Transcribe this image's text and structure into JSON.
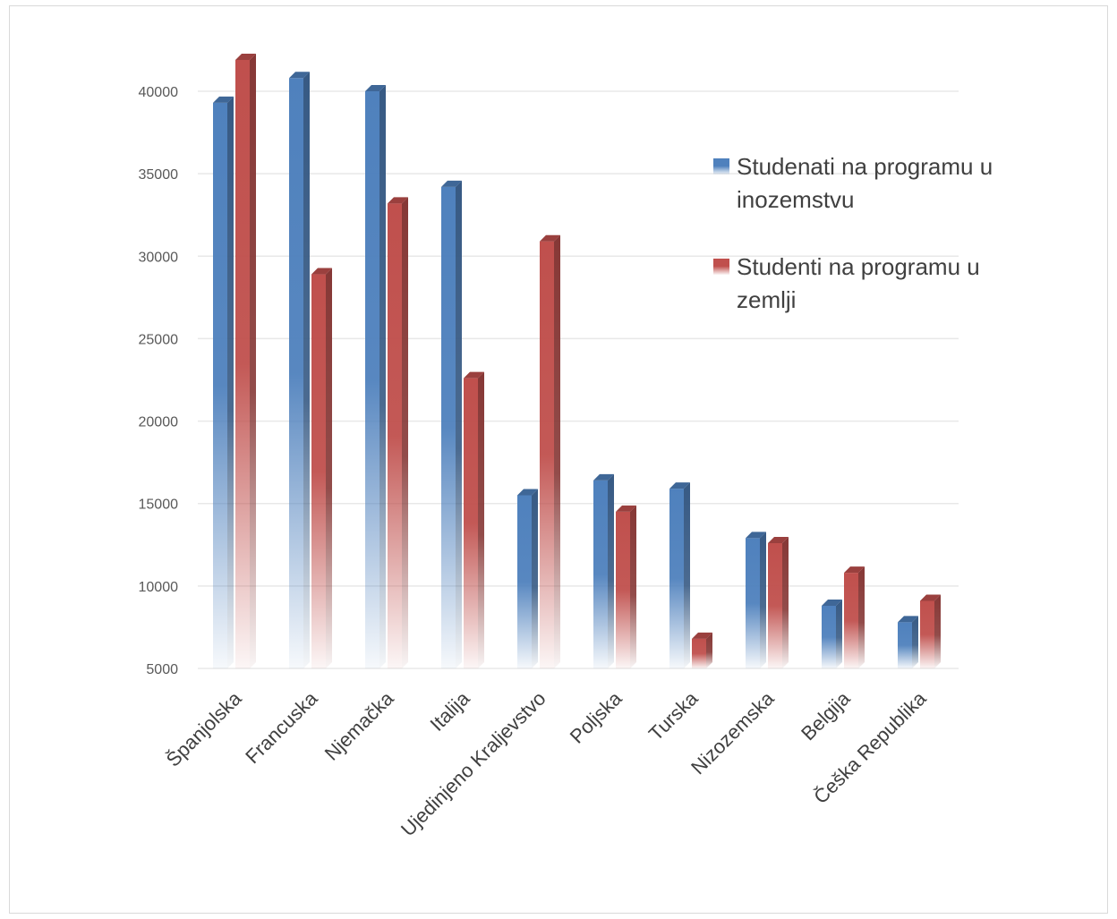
{
  "chart_data": {
    "type": "bar",
    "three_d": true,
    "categories": [
      "Španjolska",
      "Francuska",
      "Njemačka",
      "Italija",
      "Ujedinjeno Kraljevstvo",
      "Poljska",
      "Turska",
      "Nizozemska",
      "Belgija",
      "Češka Republika"
    ],
    "series": [
      {
        "name": "Studenati na programu u inozemstvu",
        "name_lines": [
          "Studenati na programu u",
          "inozemstvu"
        ],
        "color": "#4f81bd",
        "values": [
          39300,
          40800,
          40000,
          34200,
          15500,
          16400,
          15900,
          12900,
          8800,
          7800
        ]
      },
      {
        "name": "Studenti na programu u zemlji",
        "name_lines": [
          "Studenti na programu u",
          "zemlji"
        ],
        "color": "#c0504d",
        "values": [
          41900,
          28900,
          33200,
          22600,
          30900,
          14500,
          6800,
          12600,
          10800,
          9100
        ]
      }
    ],
    "yticks": [
      5000,
      10000,
      15000,
      20000,
      25000,
      30000,
      35000,
      40000
    ],
    "ylim": [
      5000,
      40000
    ],
    "grid": true,
    "legend_position": "right",
    "title": "",
    "xlabel": "",
    "ylabel": ""
  }
}
